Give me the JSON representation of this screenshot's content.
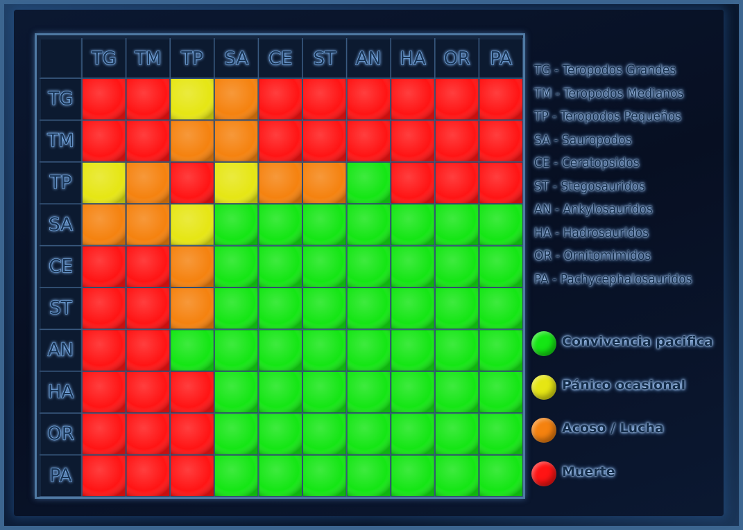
{
  "chart_data": {
    "type": "heatmap",
    "columns": [
      "TG",
      "TM",
      "TP",
      "SA",
      "CE",
      "ST",
      "AN",
      "HA",
      "OR",
      "PA"
    ],
    "rows": [
      "TG",
      "TM",
      "TP",
      "SA",
      "CE",
      "ST",
      "AN",
      "HA",
      "OR",
      "PA"
    ],
    "values": [
      [
        "red",
        "red",
        "yellow",
        "orange",
        "red",
        "red",
        "red",
        "red",
        "red",
        "red"
      ],
      [
        "red",
        "red",
        "orange",
        "orange",
        "red",
        "red",
        "red",
        "red",
        "red",
        "red"
      ],
      [
        "yellow",
        "orange",
        "red",
        "yellow",
        "orange",
        "orange",
        "green",
        "red",
        "red",
        "red"
      ],
      [
        "orange",
        "orange",
        "yellow",
        "green",
        "green",
        "green",
        "green",
        "green",
        "green",
        "green"
      ],
      [
        "red",
        "red",
        "orange",
        "green",
        "green",
        "green",
        "green",
        "green",
        "green",
        "green"
      ],
      [
        "red",
        "red",
        "orange",
        "green",
        "green",
        "green",
        "green",
        "green",
        "green",
        "green"
      ],
      [
        "red",
        "red",
        "green",
        "green",
        "green",
        "green",
        "green",
        "green",
        "green",
        "green"
      ],
      [
        "red",
        "red",
        "red",
        "green",
        "green",
        "green",
        "green",
        "green",
        "green",
        "green"
      ],
      [
        "red",
        "red",
        "red",
        "green",
        "green",
        "green",
        "green",
        "green",
        "green",
        "green"
      ],
      [
        "red",
        "red",
        "red",
        "green",
        "green",
        "green",
        "green",
        "green",
        "green",
        "green"
      ]
    ],
    "colors": {
      "green": "#14e614",
      "yellow": "#e6e614",
      "orange": "#f5820f",
      "red": "#ff1414"
    }
  },
  "legend": {
    "abbreviations": [
      "TG - Teropodos Grandes",
      "TM - Teropodos Medianos",
      "TP - Teropodos Pequeños",
      "SA - Sauropodos",
      "CE - Ceratopsidos",
      "ST - Stegosauridos",
      "AN - Ankylosauridos",
      "HA - Hadrosauridos",
      "OR - Ornitomimidos",
      "PA - Pachycephalosauridos"
    ],
    "statuses": [
      {
        "label": "Convivencia pacifica",
        "color": "#14e614"
      },
      {
        "label": "Pánico ocasional",
        "color": "#e6e614"
      },
      {
        "label": "Acoso / Lucha",
        "color": "#f5820f"
      },
      {
        "label": "Muerte",
        "color": "#ff1414"
      }
    ]
  }
}
